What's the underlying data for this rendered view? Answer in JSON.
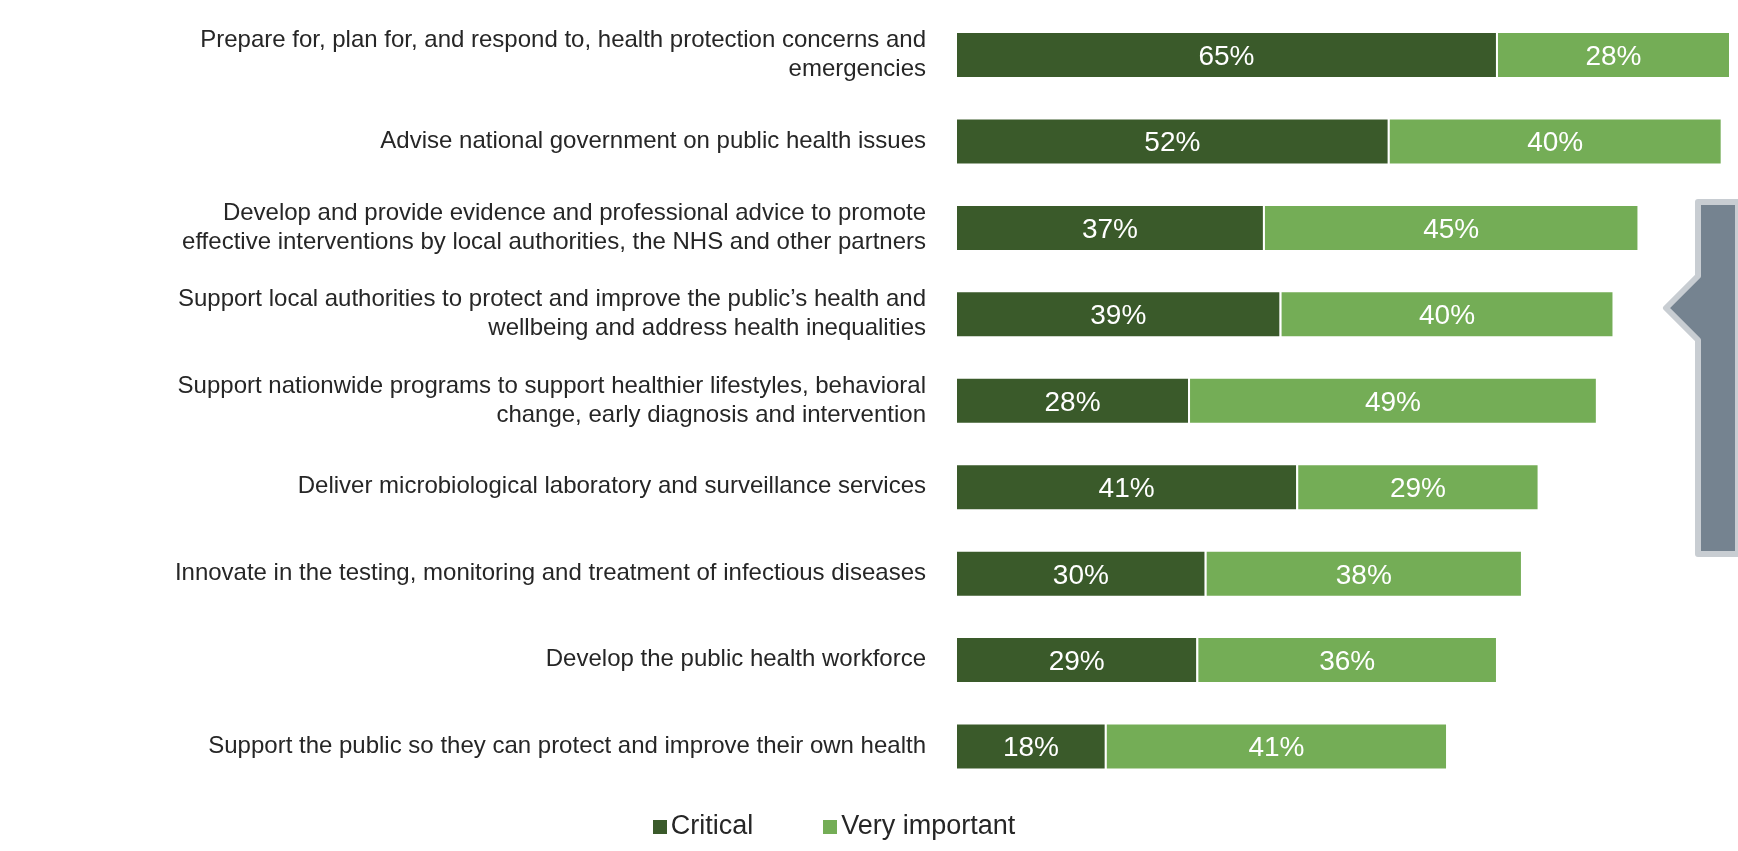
{
  "chart_data": {
    "type": "bar",
    "orientation": "horizontal",
    "stacked": true,
    "legend": "bottom",
    "categories": [
      "Prepare for, plan for, and respond to, health protection concerns and emergencies",
      "Advise national government on public health issues",
      "Develop and provide evidence and professional advice to promote effective interventions by local authorities, the NHS and other partners",
      "Support local authorities to protect and improve the public’s health and wellbeing and address health inequalities",
      "Support nationwide programs to support healthier lifestyles, behavioral change, early diagnosis and intervention",
      "Deliver microbiological laboratory and surveillance services",
      "Innovate in the testing, monitoring and treatment of infectious diseases",
      "Develop the public health workforce",
      "Support the public so they can protect and improve their own health"
    ],
    "series": [
      {
        "name": "Critical",
        "color": "#3a5a2a",
        "values": [
          65,
          52,
          37,
          39,
          28,
          41,
          30,
          29,
          18
        ],
        "value_labels": [
          "65%",
          "52%",
          "37%",
          "39%",
          "28%",
          "41%",
          "30%",
          "29%",
          "18%"
        ]
      },
      {
        "name": "Very important",
        "color": "#74ad56",
        "values": [
          28,
          40,
          45,
          40,
          49,
          29,
          38,
          36,
          41
        ],
        "value_labels": [
          "28%",
          "40%",
          "45%",
          "40%",
          "49%",
          "29%",
          "38%",
          "36%",
          "41%"
        ]
      }
    ]
  }
}
